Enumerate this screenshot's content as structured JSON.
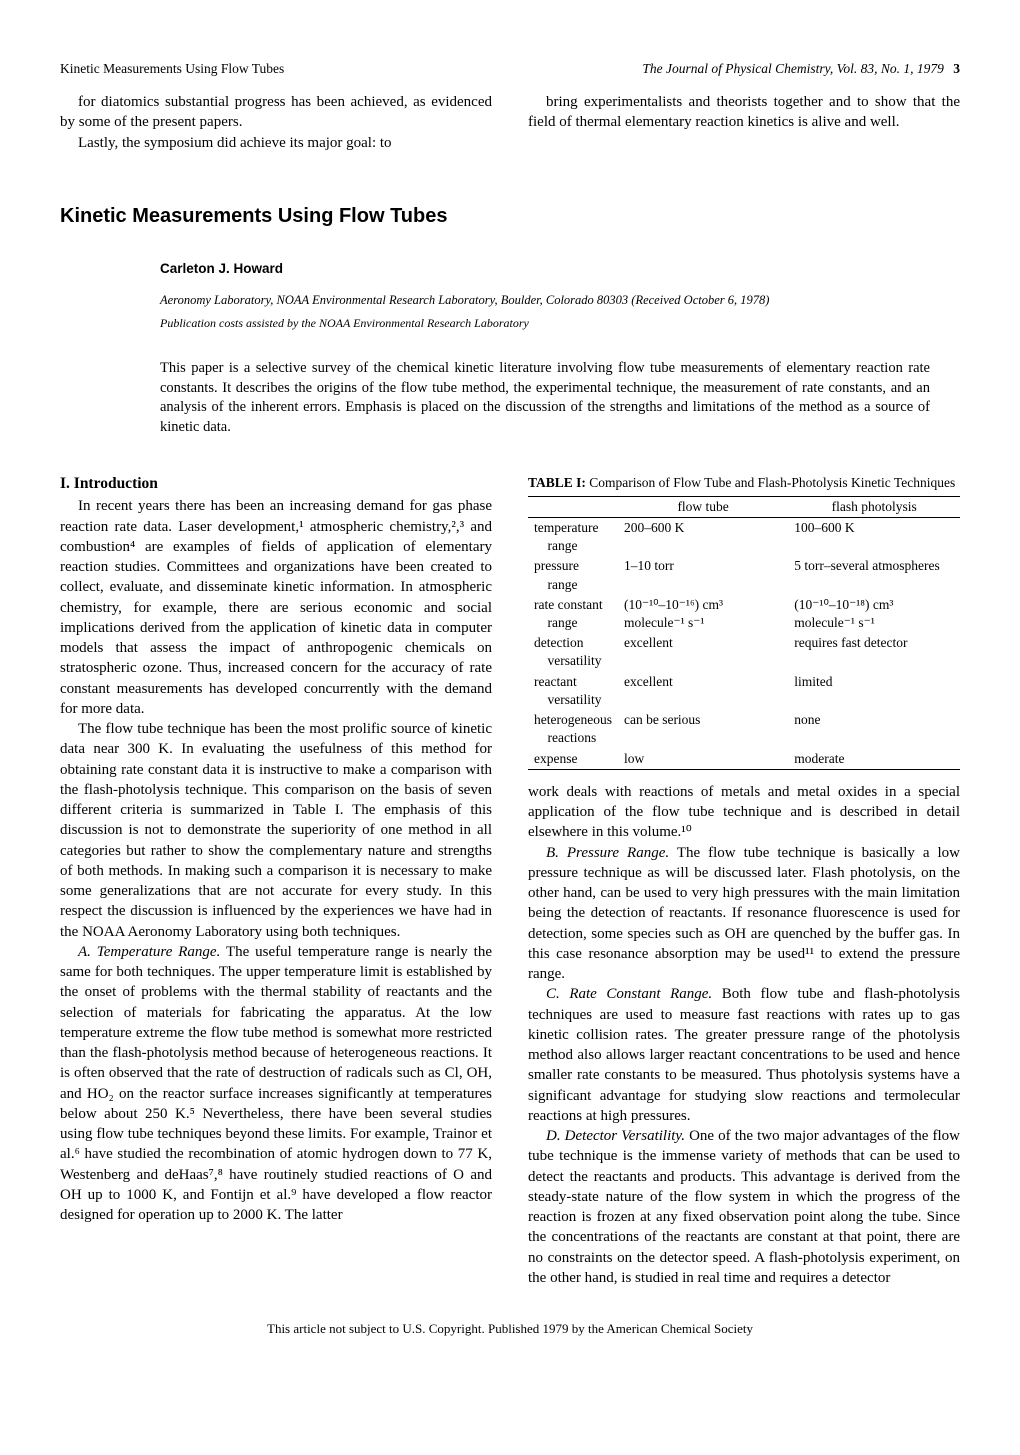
{
  "header": {
    "running_left": "Kinetic Measurements Using Flow Tubes",
    "journal": "The Journal of Physical Chemistry, Vol. 83, No. 1, 1979",
    "page_number": "3"
  },
  "top_continuation": {
    "left_p1": "for diatomics substantial progress has been achieved, as evidenced by some of the present papers.",
    "left_p2": "Lastly, the symposium did achieve its major goal: to",
    "right_p1": "bring experimentalists and theorists together and to show that the field of thermal elementary reaction kinetics is alive and well."
  },
  "article": {
    "title": "Kinetic Measurements Using Flow Tubes",
    "author": "Carleton J. Howard",
    "affiliation": "Aeronomy Laboratory, NOAA Environmental Research Laboratory, Boulder, Colorado 80303 (Received October 6, 1978)",
    "pub_note": "Publication costs assisted by the NOAA Environmental Research Laboratory",
    "abstract": "This paper is a selective survey of the chemical kinetic literature involving flow tube measurements of elementary reaction rate constants. It describes the origins of the flow tube method, the experimental technique, the measurement of rate constants, and an analysis of the inherent errors. Emphasis is placed on the discussion of the strengths and limitations of the method as a source of kinetic data."
  },
  "section1_head": "I. Introduction",
  "table1": {
    "caption_label": "TABLE I:",
    "caption_text": "Comparison of Flow Tube and Flash-Photolysis Kinetic Techniques",
    "col_headers": [
      "",
      "flow tube",
      "flash photolysis"
    ],
    "rows": [
      {
        "label_main": "temperature",
        "label_sub": "range",
        "flow": "200–600 K",
        "flash": "100–600 K"
      },
      {
        "label_main": "pressure",
        "label_sub": "range",
        "flow": "1–10 torr",
        "flash": "5 torr–several atmospheres"
      },
      {
        "label_main": "rate constant",
        "label_sub": "range",
        "flow": "(10⁻¹⁰–10⁻¹⁶) cm³ molecule⁻¹ s⁻¹",
        "flash": "(10⁻¹⁰–10⁻¹⁸) cm³ molecule⁻¹ s⁻¹"
      },
      {
        "label_main": "detection",
        "label_sub": "versatility",
        "flow": "excellent",
        "flash": "requires fast detector"
      },
      {
        "label_main": "reactant",
        "label_sub": "versatility",
        "flow": "excellent",
        "flash": "limited"
      },
      {
        "label_main": "heterogeneous",
        "label_sub": "reactions",
        "flow": "can be serious",
        "flash": "none"
      },
      {
        "label_main": "expense",
        "label_sub": "",
        "flow": "low",
        "flash": "moderate"
      }
    ]
  },
  "body": {
    "left": {
      "p1": "In recent years there has been an increasing demand for gas phase reaction rate data. Laser development,¹ atmospheric chemistry,²,³ and combustion⁴ are examples of fields of application of elementary reaction studies. Committees and organizations have been created to collect, evaluate, and disseminate kinetic information. In atmospheric chemistry, for example, there are serious economic and social implications derived from the application of kinetic data in computer models that assess the impact of anthropogenic chemicals on stratospheric ozone. Thus, increased concern for the accuracy of rate constant measurements has developed concurrently with the demand for more data.",
      "p2": "The flow tube technique has been the most prolific source of kinetic data near 300 K. In evaluating the usefulness of this method for obtaining rate constant data it is instructive to make a comparison with the flash-photolysis technique. This comparison on the basis of seven different criteria is summarized in Table I. The emphasis of this discussion is not to demonstrate the superiority of one method in all categories but rather to show the complementary nature and strengths of both methods. In making such a comparison it is necessary to make some generalizations that are not accurate for every study. In this respect the discussion is influenced by the experiences we have had in the NOAA Aeronomy Laboratory using both techniques.",
      "p3_label": "A. Temperature Range.",
      "p3": " The useful temperature range is nearly the same for both techniques. The upper temperature limit is established by the onset of problems with the thermal stability of reactants and the selection of materials for fabricating the apparatus. At the low temperature extreme the flow tube method is somewhat more restricted than the flash-photolysis method because of heterogeneous reactions. It is often observed that the rate of destruction of radicals such as Cl, OH, and HO₂ on the reactor surface increases significantly at temperatures below about 250 K.⁵ Nevertheless, there have been several studies using flow tube techniques beyond these limits. For example, Trainor et al.⁶ have studied the recombination of atomic hydrogen down to 77 K, Westenberg and deHaas⁷,⁸ have routinely studied reactions of O and OH up to 1000 K, and Fontijn et al.⁹ have developed a flow reactor designed for operation up to 2000 K. The latter"
    },
    "right": {
      "p_after_table": "work deals with reactions of metals and metal oxides in a special application of the flow tube technique and is described in detail elsewhere in this volume.¹⁰",
      "pB_label": "B. Pressure Range.",
      "pB": " The flow tube technique is basically a low pressure technique as will be discussed later. Flash photolysis, on the other hand, can be used to very high pressures with the main limitation being the detection of reactants. If resonance fluorescence is used for detection, some species such as OH are quenched by the buffer gas. In this case resonance absorption may be used¹¹ to extend the pressure range.",
      "pC_label": "C. Rate Constant Range.",
      "pC": " Both flow tube and flash-photolysis techniques are used to measure fast reactions with rates up to gas kinetic collision rates. The greater pressure range of the photolysis method also allows larger reactant concentrations to be used and hence smaller rate constants to be measured. Thus photolysis systems have a significant advantage for studying slow reactions and termolecular reactions at high pressures.",
      "pD_label": "D. Detector Versatility.",
      "pD": " One of the two major advantages of the flow tube technique is the immense variety of methods that can be used to detect the reactants and products. This advantage is derived from the steady-state nature of the flow system in which the progress of the reaction is frozen at any fixed observation point along the tube. Since the concentrations of the reactants are constant at that point, there are no constraints on the detector speed. A flash-photolysis experiment, on the other hand, is studied in real time and requires a detector"
    }
  },
  "footer": "This article not subject to U.S. Copyright. Published 1979 by the American Chemical Society"
}
